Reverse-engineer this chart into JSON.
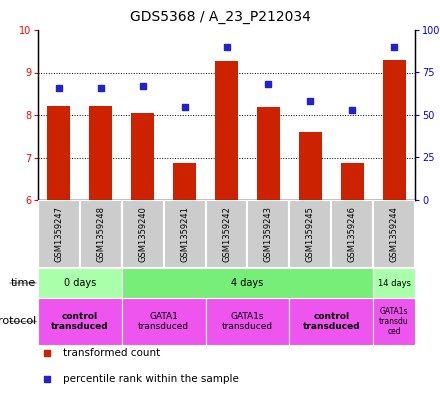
{
  "title": "GDS5368 / A_23_P212034",
  "samples": [
    "GSM1359247",
    "GSM1359248",
    "GSM1359240",
    "GSM1359241",
    "GSM1359242",
    "GSM1359243",
    "GSM1359245",
    "GSM1359246",
    "GSM1359244"
  ],
  "transformed_counts": [
    8.22,
    8.22,
    8.05,
    6.88,
    9.28,
    8.2,
    7.6,
    6.88,
    9.3
  ],
  "percentile_ranks": [
    66,
    66,
    67,
    55,
    90,
    68,
    58,
    53,
    90
  ],
  "ylim_left": [
    6,
    10
  ],
  "ylim_right": [
    0,
    100
  ],
  "yticks_left": [
    6,
    7,
    8,
    9,
    10
  ],
  "yticks_right": [
    0,
    25,
    50,
    75,
    100
  ],
  "ytick_labels_right": [
    "0",
    "25",
    "50",
    "75",
    "100%"
  ],
  "bar_color": "#cc2200",
  "dot_color": "#2222cc",
  "bg_color": "#ffffff",
  "time_groups": [
    {
      "label": "0 days",
      "start": 0,
      "end": 2,
      "color": "#aaffaa"
    },
    {
      "label": "4 days",
      "start": 2,
      "end": 8,
      "color": "#77ee77"
    },
    {
      "label": "14 days",
      "start": 8,
      "end": 9,
      "color": "#aaffaa"
    }
  ],
  "protocol_groups": [
    {
      "label": "control\ntransduced",
      "start": 0,
      "end": 2,
      "color": "#ee55ee",
      "bold": true
    },
    {
      "label": "GATA1\ntransduced",
      "start": 2,
      "end": 4,
      "color": "#ee55ee",
      "bold": false
    },
    {
      "label": "GATA1s\ntransduced",
      "start": 4,
      "end": 6,
      "color": "#ee55ee",
      "bold": false
    },
    {
      "label": "control\ntransduced",
      "start": 6,
      "end": 8,
      "color": "#ee55ee",
      "bold": true
    },
    {
      "label": "GATA1s\ntransdu\nced",
      "start": 8,
      "end": 9,
      "color": "#ee55ee",
      "bold": false
    }
  ],
  "sample_bg_color": "#cccccc",
  "legend_items": [
    {
      "label": "transformed count",
      "color": "#cc2200"
    },
    {
      "label": "percentile rank within the sample",
      "color": "#2222cc"
    }
  ]
}
